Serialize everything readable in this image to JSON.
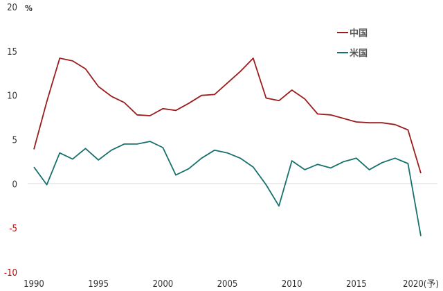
{
  "chart_data": {
    "type": "line",
    "title": "",
    "xlabel": "",
    "ylabel": "%",
    "ylim": [
      -10,
      20
    ],
    "yticks": [
      20,
      15,
      10,
      5,
      0,
      -5,
      -10
    ],
    "xlim": [
      1990,
      2020
    ],
    "xticks": [
      1990,
      1995,
      2000,
      2005,
      2010,
      2015,
      2020
    ],
    "xtick_labels": [
      "1990",
      "1995",
      "2000",
      "2005",
      "2010",
      "2015",
      "2020(予)"
    ],
    "grid": false,
    "legend": "top-right",
    "x": [
      1990,
      1991,
      1992,
      1993,
      1994,
      1995,
      1996,
      1997,
      1998,
      1999,
      2000,
      2001,
      2002,
      2003,
      2004,
      2005,
      2006,
      2007,
      2008,
      2009,
      2010,
      2011,
      2012,
      2013,
      2014,
      2015,
      2016,
      2017,
      2018,
      2019,
      2020
    ],
    "series": [
      {
        "name": "中国",
        "color": "#9b1c1c",
        "values": [
          3.9,
          9.3,
          14.2,
          13.9,
          13.0,
          11.0,
          9.9,
          9.2,
          7.8,
          7.7,
          8.5,
          8.3,
          9.1,
          10.0,
          10.1,
          11.4,
          12.7,
          14.2,
          9.7,
          9.4,
          10.6,
          9.6,
          7.9,
          7.8,
          7.4,
          7.0,
          6.9,
          6.9,
          6.7,
          6.1,
          1.2
        ]
      },
      {
        "name": "米国",
        "color": "#17706b",
        "values": [
          1.9,
          -0.1,
          3.5,
          2.8,
          4.0,
          2.7,
          3.8,
          4.5,
          4.5,
          4.8,
          4.1,
          1.0,
          1.7,
          2.9,
          3.8,
          3.5,
          2.9,
          1.9,
          -0.1,
          -2.5,
          2.6,
          1.6,
          2.2,
          1.8,
          2.5,
          2.9,
          1.6,
          2.4,
          2.9,
          2.3,
          -5.9
        ]
      }
    ]
  }
}
